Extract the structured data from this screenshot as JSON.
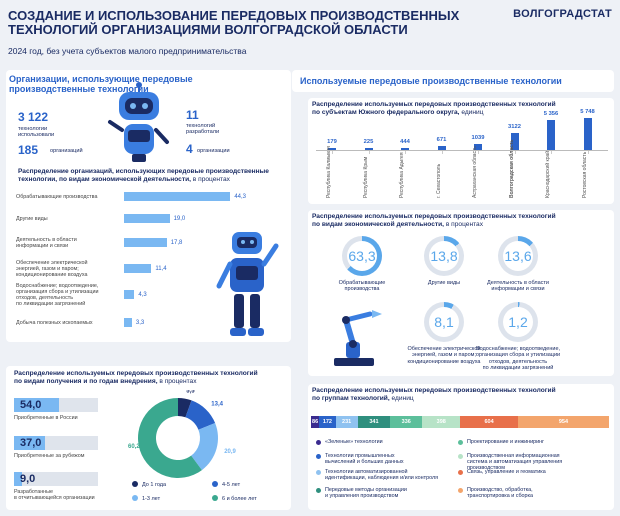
{
  "header": {
    "title_line1": "СОЗДАНИЕ И ИСПОЛЬЗОВАНИЕ ПЕРЕДОВЫХ ПРОИЗВОДСТВЕННЫХ",
    "title_line2": "ТЕХНОЛОГИЙ ОРГАНИЗАЦИЯМИ ВОЛГОГРАДСКОЙ ОБЛАСТИ",
    "subtitle": "2024 год, без учета субъектов малого предпринимательства",
    "logo": "ВОЛГОГРАДСТАТ"
  },
  "left": {
    "section_title_1": "Организации, использующие передовые",
    "section_title_2": "производственные технологии",
    "stat1_value": "3 122",
    "stat1_label_1": "технологии",
    "stat1_label_2": "использовали",
    "stat2_value": "185",
    "stat2_label": "организаций",
    "stat3_value": "11",
    "stat3_label_1": "технологий",
    "stat3_label_2": "разработали",
    "stat4_value": "4",
    "stat4_label": "организации",
    "activity_title_1": "Распределение организаций, использующих передовые производственные",
    "activity_title_2": "технологии, по видам экономической деятельности,",
    "activity_title_unit": " в процентах",
    "channel_title_1": "Распределение используемых передовых производственных технологий",
    "channel_title_2": "по видам получения и по годам внедрения,",
    "channel_title_unit": " в процентах"
  },
  "right": {
    "section_title": "Используемые передовые производственные технологии",
    "district_title_1": "Распределение используемых передовых производственных технологий",
    "district_title_2": "по субъектам Южного федерального округа,",
    "district_unit": " единиц",
    "donut_title_1": "Распределение используемых передовых производственных технологий",
    "donut_title_2": "по видам экономической деятельности,",
    "donut_unit": " в процентах",
    "group_title_1": "Распределение используемых передовых производственных технологий",
    "group_title_2": "по группам технологий,",
    "group_unit": " единиц"
  },
  "chart_data": [
    {
      "type": "bar",
      "orientation": "horizontal",
      "categories": [
        "Обрабатывающие производства",
        "Другие виды",
        "Деятельность в области информации и связи",
        "Обеспечение электрической энергией, газом и паром; кондиционирование воздуха",
        "Водоснабжение; водоотведение, организация сбора и утилизации отходов, деятельность по ликвидации загрязнений",
        "Добыча полезных ископаемых"
      ],
      "labels": [
        [
          "Обрабатывающие производства"
        ],
        [
          "Другие виды"
        ],
        [
          "Деятельность в области",
          "информации     и связи"
        ],
        [
          "Обеспечение электрической",
          "энергией, газом и паром;",
          "кондиционирование воздуха"
        ],
        [
          "Водоснабжение; водоотведение,",
          "организация сбора и утилизации",
          "отходов, деятельность",
          "по ликвидации загрязнений"
        ],
        [
          "Добыча полезных ископаемых"
        ]
      ],
      "values": [
        44.3,
        19.0,
        17.8,
        11.4,
        4.3,
        3.3
      ],
      "value_labels": [
        "44,3",
        "19,0",
        "17,8",
        "11,4",
        "4,3",
        "3,3"
      ],
      "xlim": [
        0,
        50
      ]
    },
    {
      "type": "bar",
      "orientation": "vertical",
      "categories": [
        "Республика Калмыкия",
        "Республика Крым",
        "Республика Адыгея",
        "г. Севастополь",
        "Астраханская область",
        "Волгоградская область",
        "Краснодарский край",
        "Ростовская область"
      ],
      "values": [
        179,
        225,
        444,
        671,
        1039,
        3122,
        5356,
        5748
      ],
      "value_labels": [
        "179",
        "225",
        "444",
        "671",
        "1039",
        "3122",
        "5 356",
        "5 748"
      ],
      "highlight": "Волгоградская область",
      "ylim": [
        0,
        5748
      ]
    },
    {
      "type": "bar",
      "orientation": "horizontal",
      "categories": [
        "Приобретенные в России",
        "Приобретенные за рубежом",
        "Разработанные в отчитывающейся организации"
      ],
      "labels": [
        [
          "Приобретенные в России"
        ],
        [
          "Приобретенные за рубежом"
        ],
        [
          "Разработанные",
          "в отчитывающейся организации"
        ]
      ],
      "values": [
        54.0,
        37.0,
        9.0
      ],
      "value_labels": [
        "54,0",
        "37,0",
        "9,0"
      ],
      "xlim": [
        0,
        100
      ]
    },
    {
      "type": "pie",
      "categories": [
        "До 1 года",
        "1-3 лет",
        "4-5 лет",
        "6 и более лет"
      ],
      "values": [
        5.5,
        20.9,
        13.4,
        60.2
      ],
      "value_labels": [
        "5,5",
        "20,9",
        "13,4",
        "60,2"
      ],
      "colors": [
        "#1a2b63",
        "#7ab8f2",
        "#2a63c9",
        "#3aa88f"
      ]
    },
    {
      "type": "pie",
      "subtype": "donut-set",
      "categories": [
        "Обрабатывающие производства",
        "Другие виды",
        "Деятельность в области информации и связи",
        "Обеспечение электрической энергией, газом и паром; кондиционирование воздуха",
        "Водоснабжение; водоотведение, организация сбора и утилизации отходов, деятельность по ликвидации загрязнений"
      ],
      "labels": [
        [
          "Обрабатывающие",
          "производства"
        ],
        [
          "Другие виды"
        ],
        [
          "Деятельность в области",
          "информации и связи"
        ],
        [
          "Обеспечение электрической",
          "энергией, газом и паром;",
          "кондиционирование воздуха"
        ],
        [
          "Водоснабжение; водоотведение,",
          "организация сбора и утилизации",
          "отходов, деятельность",
          "по ликвидации загрязнений"
        ]
      ],
      "values": [
        63.3,
        13.8,
        13.6,
        8.1,
        1.2
      ],
      "value_labels": [
        "63,3",
        "13,8",
        "13,6",
        "8,1",
        "1,2"
      ]
    },
    {
      "type": "bar",
      "orientation": "stacked",
      "categories": [
        "«Зеленые» технологии",
        "Технологии промышленных вычислений и больших данных",
        "Технологии автоматизированной идентификации, наблюдения и/или контроля",
        "Передовые методы организации и управления производством",
        "Проектирование и инжиниринг",
        "Производственная информационная система и автоматизация управления производством",
        "Связь, управление и геоматика",
        "Производство, обработка, транспортировка и сборка"
      ],
      "labels": [
        [
          "«Зеленые» технологии"
        ],
        [
          "Технологии промышленных",
          "вычислений и больших данных"
        ],
        [
          "Технологии автоматизированной",
          "идентификации, наблюдения и/или контроля"
        ],
        [
          "Передовые методы организации",
          "и управления производством"
        ],
        [
          "Проектирование и инжиниринг"
        ],
        [
          "Производственная информационная",
          "система и автоматизация управления",
          "производством"
        ],
        [
          "Связь, управление и геоматика"
        ],
        [
          "Производство, обработка,",
          "транспортировка и сборка"
        ]
      ],
      "values": [
        86,
        172,
        231,
        341,
        336,
        398,
        604,
        954
      ],
      "value_labels": [
        "86",
        "172",
        "231",
        "341",
        "336",
        "398",
        "604",
        "954"
      ],
      "colors": [
        "#3a2b8f",
        "#2a63c9",
        "#8fc2f0",
        "#2f8f7e",
        "#5cbf9b",
        "#b7e3c7",
        "#e8704a",
        "#f3a56c"
      ]
    }
  ]
}
